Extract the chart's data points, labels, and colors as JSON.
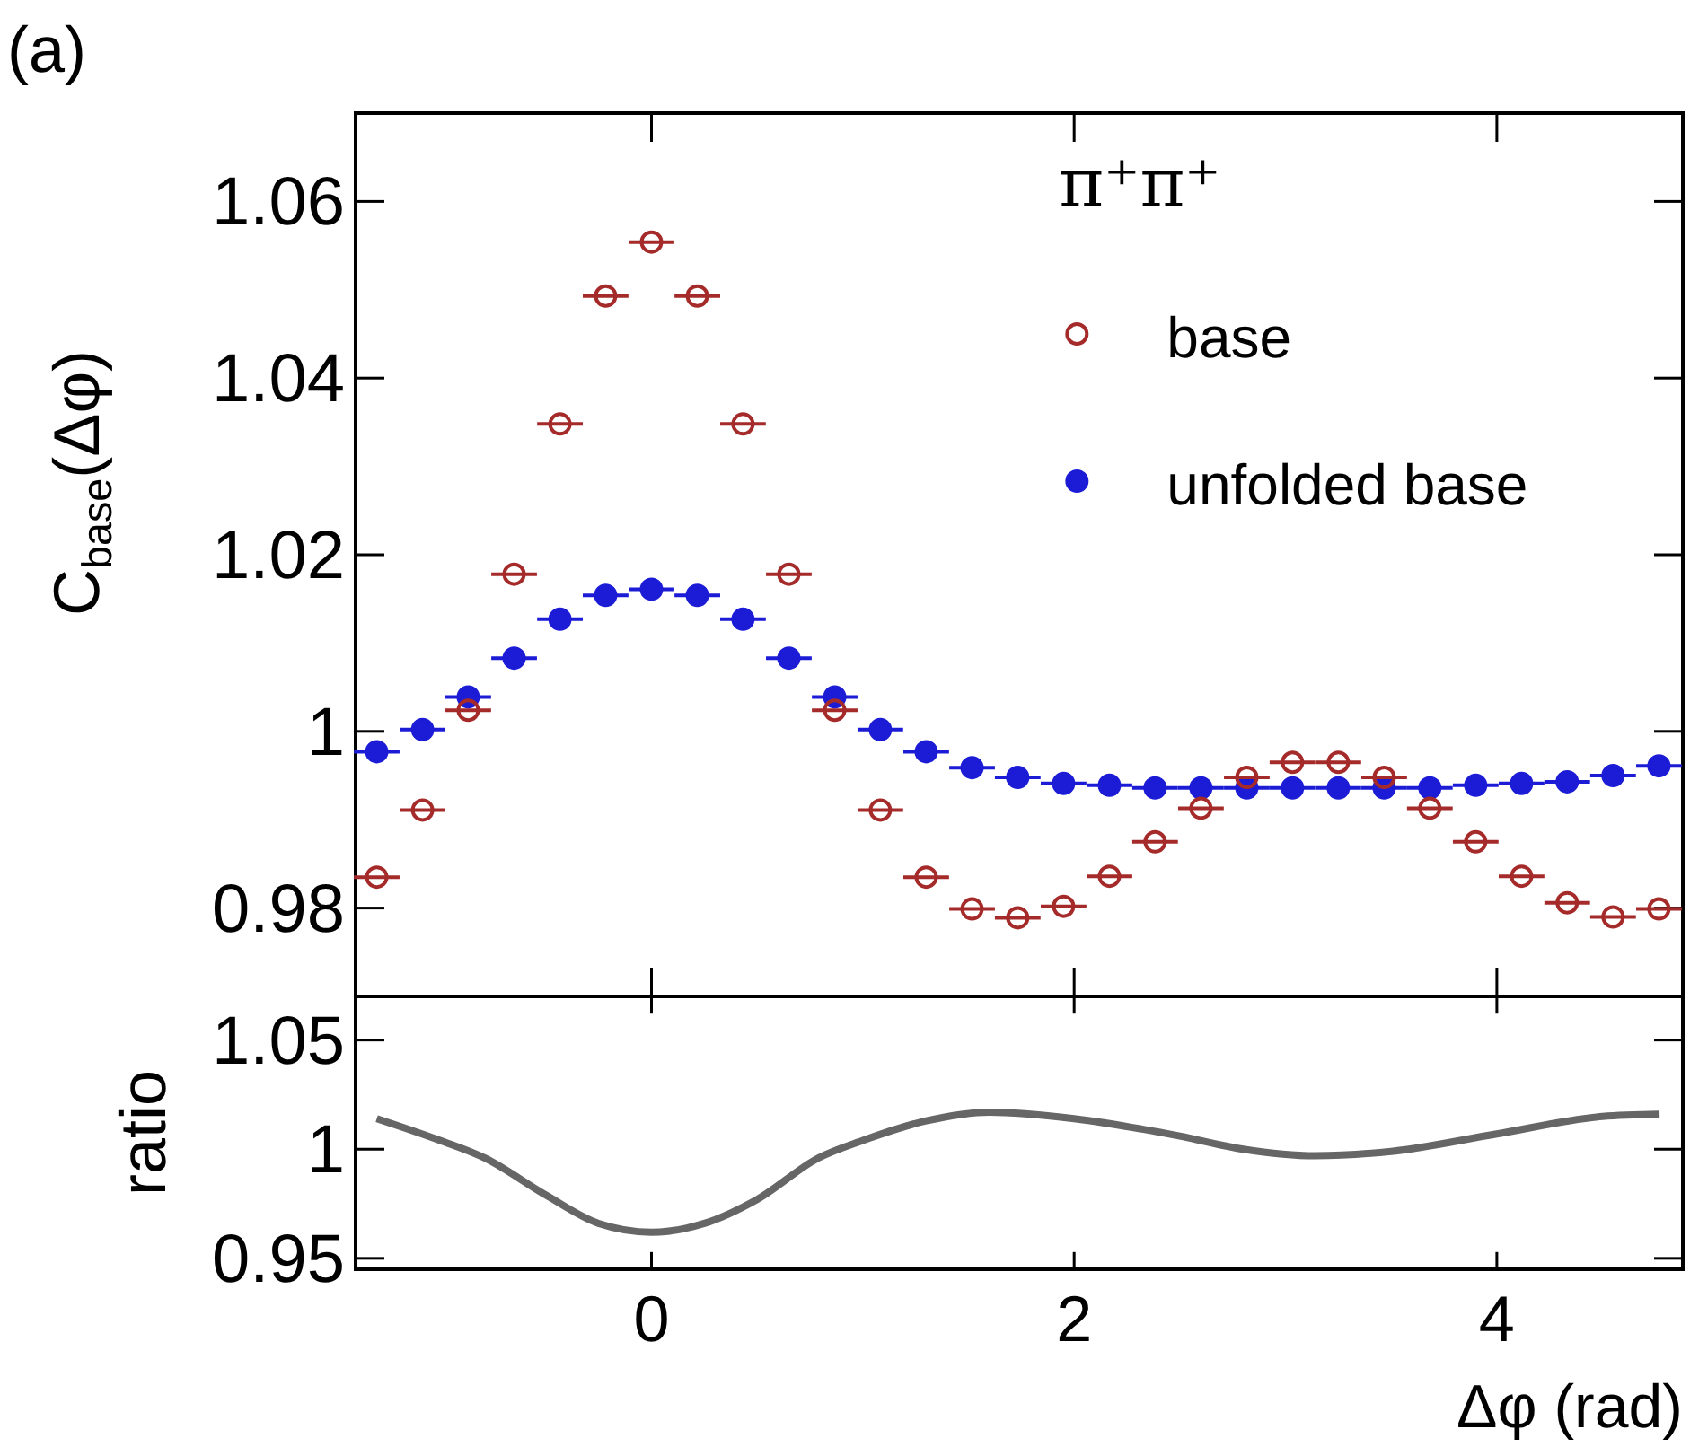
{
  "chart_data": [
    {
      "type": "scatter",
      "title": "(a)",
      "ylabel": "C$_{base}$(Δφ)",
      "legend_title": "π⁺π⁺",
      "legend": "top right",
      "marker": "circle",
      "tick_labels": "y",
      "xlim": [
        -1.4,
        4.88
      ],
      "ylim": [
        0.97,
        1.07
      ],
      "xticks": [
        {
          "value": 0,
          "label": null
        },
        {
          "value": 2,
          "label": null
        },
        {
          "value": 4,
          "label": null
        }
      ],
      "yticks": [
        0.98,
        {
          "value": 1,
          "label": "1"
        },
        1.02,
        1.04,
        1.06
      ],
      "x": [
        -1.3,
        -1.083,
        -0.867,
        -0.65,
        -0.433,
        -0.217,
        0,
        0.217,
        0.433,
        0.65,
        0.867,
        1.083,
        1.3,
        1.517,
        1.733,
        1.95,
        2.167,
        2.383,
        2.6,
        2.817,
        3.033,
        3.25,
        3.467,
        3.683,
        3.9,
        4.117,
        4.333,
        4.55,
        4.767
      ],
      "series": [
        {
          "name": "base",
          "color": "#a52a2a",
          "values": [
            0.9835,
            0.9911,
            1.0024,
            1.0178,
            1.0348,
            1.0493,
            1.0554,
            1.0493,
            1.0348,
            1.0178,
            1.0024,
            0.9911,
            0.9835,
            0.9799,
            0.9789,
            0.9802,
            0.9836,
            0.9875,
            0.9913,
            0.9948,
            0.9965,
            0.9965,
            0.9948,
            0.9913,
            0.9875,
            0.9836,
            0.9806,
            0.979,
            0.9799
          ],
          "xerrors": [
            0.108,
            0.108,
            0.108,
            0.108,
            0.108,
            0.108,
            0.108,
            0.108,
            0.108,
            0.108,
            0.108,
            0.108,
            0.108,
            0.108,
            0.108,
            0.108,
            0.108,
            0.108,
            0.108,
            0.108,
            0.108,
            0.108,
            0.108,
            0.108,
            0.108,
            0.108,
            0.108,
            0.108,
            0.108
          ]
        },
        {
          "name": "unfolded base",
          "color": "#1c1cd6",
          "values": [
            0.9977,
            1.0002,
            1.0039,
            1.0083,
            1.0127,
            1.0154,
            1.0161,
            1.0154,
            1.0127,
            1.0083,
            1.0039,
            1.0002,
            0.9977,
            0.9959,
            0.9948,
            0.9941,
            0.9939,
            0.9936,
            0.9936,
            0.9936,
            0.9936,
            0.9936,
            0.9936,
            0.9936,
            0.9939,
            0.9941,
            0.9943,
            0.995,
            0.9961
          ],
          "xerrors": [
            0.108,
            0.108,
            0.108,
            0.108,
            0.108,
            0.108,
            0.108,
            0.108,
            0.108,
            0.108,
            0.108,
            0.108,
            0.108,
            0.108,
            0.108,
            0.108,
            0.108,
            0.108,
            0.108,
            0.108,
            0.108,
            0.108,
            0.108,
            0.108,
            0.108,
            0.108,
            0.108,
            0.108,
            0.108
          ]
        }
      ]
    },
    {
      "type": "line",
      "xlabel": "Δφ (rad)",
      "ylabel": "ratio",
      "line_style": "solid",
      "xlim": [
        -1.4,
        4.88
      ],
      "ylim": [
        0.945,
        1.07
      ],
      "xticks": [
        0,
        2,
        4
      ],
      "yticks": [
        0.95,
        {
          "value": 1,
          "label": "1"
        },
        1.05
      ],
      "x": [
        -1.3,
        -1.0,
        -0.79,
        -0.5,
        -0.25,
        0,
        0.25,
        0.5,
        0.79,
        1.0,
        1.3,
        1.6,
        2.0,
        2.5,
        2.8,
        3.14,
        3.5,
        4.0,
        4.5,
        4.77
      ],
      "series": [
        {
          "color": "#666666",
          "values": [
            1.014,
            1.004,
            0.996,
            0.979,
            0.966,
            0.962,
            0.966,
            0.977,
            0.996,
            1.004,
            1.013,
            1.017,
            1.014,
            1.006,
            1.0,
            0.997,
            0.999,
            1.007,
            1.015,
            1.016
          ]
        }
      ]
    }
  ]
}
